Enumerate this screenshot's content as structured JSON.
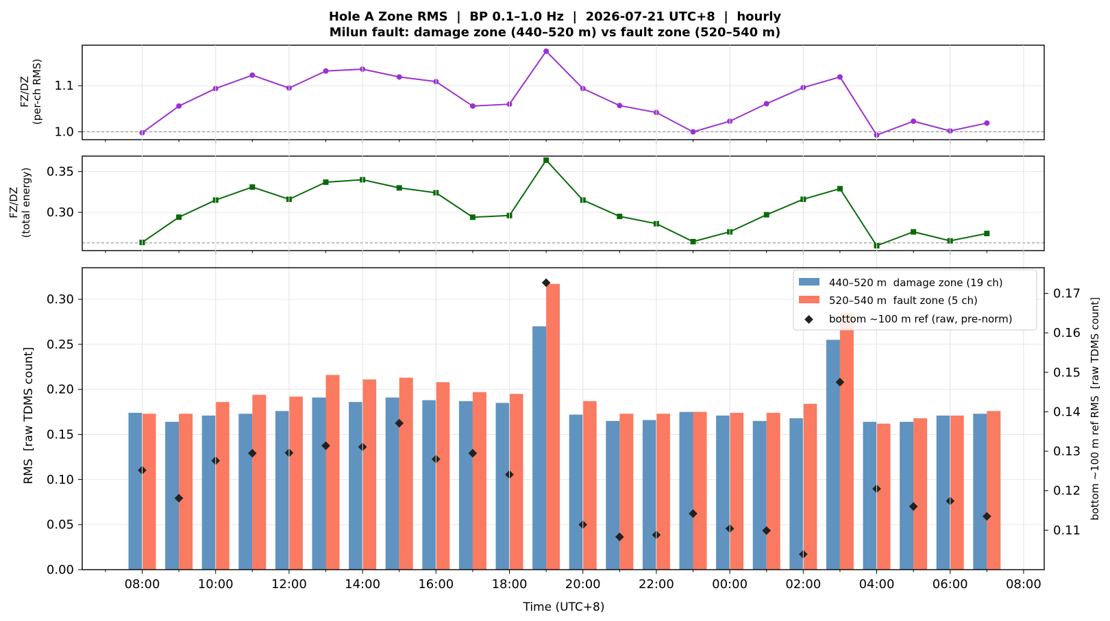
{
  "title_line1": "Hole A Zone RMS  |  BP 0.1–1.0 Hz  |  2026-07-21 UTC+8  |  hourly",
  "title_line2": "Milun fault: damage zone (440–520 m) vs fault zone (520–540 m)",
  "colors": {
    "ratio_rms": "#9b30d0",
    "ratio_energy": "#0a6a0a",
    "damage_zone": "#6093c0",
    "fault_zone": "#fa7a62",
    "reference": "#222222",
    "dashed_ref": "#808080"
  },
  "chart_data": [
    {
      "type": "line",
      "ylabel_line1": "FZ/DZ",
      "ylabel_line2": "(per-ch RMS)",
      "ylim": [
        0.983,
        1.188
      ],
      "yticks": [
        1.0,
        1.1
      ],
      "ytick_labels": [
        "1.0",
        "1.1"
      ],
      "reference_line": 1.0,
      "grid": true,
      "series": [
        {
          "marker": "circle",
          "values": [
            0.998,
            1.056,
            1.094,
            1.123,
            1.095,
            1.132,
            1.136,
            1.119,
            1.109,
            1.056,
            1.06,
            1.175,
            1.094,
            1.057,
            1.042,
            1.0,
            1.023,
            1.061,
            1.096,
            1.119,
            0.993,
            1.023,
            1.002,
            1.019
          ]
        }
      ]
    },
    {
      "type": "line",
      "ylabel_line1": "FZ/DZ",
      "ylabel_line2": "(total energy)",
      "ylim": [
        0.253,
        0.369
      ],
      "yticks": [
        0.3,
        0.35
      ],
      "ytick_labels": [
        "0.30",
        "0.35"
      ],
      "reference_line": 0.2625,
      "grid": true,
      "series": [
        {
          "marker": "square",
          "values": [
            0.263,
            0.294,
            0.315,
            0.331,
            0.316,
            0.337,
            0.34,
            0.33,
            0.324,
            0.294,
            0.296,
            0.364,
            0.315,
            0.295,
            0.286,
            0.264,
            0.276,
            0.297,
            0.316,
            0.329,
            0.259,
            0.276,
            0.265,
            0.274
          ]
        }
      ]
    },
    {
      "type": "bar",
      "ylabel": "RMS  [raw TDMS count]",
      "ylabel_right": "bottom ~100 m ref RMS  [raw TDMS count]",
      "xlabel": "Time (UTC+8)",
      "ylim": [
        0,
        0.335
      ],
      "yticks": [
        0.0,
        0.05,
        0.1,
        0.15,
        0.2,
        0.25,
        0.3
      ],
      "ytick_labels": [
        "0.00",
        "0.05",
        "0.10",
        "0.15",
        "0.20",
        "0.25",
        "0.30"
      ],
      "ylim_right": [
        0.1,
        0.1765
      ],
      "yticks_right": [
        0.11,
        0.12,
        0.13,
        0.14,
        0.15,
        0.16,
        0.17
      ],
      "ytick_labels_right": [
        "0.11",
        "0.12",
        "0.13",
        "0.14",
        "0.15",
        "0.16",
        "0.17"
      ],
      "xtick_labels": [
        "08:00",
        "10:00",
        "12:00",
        "14:00",
        "16:00",
        "18:00",
        "20:00",
        "22:00",
        "00:00",
        "02:00",
        "04:00",
        "06:00",
        "08:00"
      ],
      "legend": "upper right",
      "grid": true,
      "series": [
        {
          "name": "440–520 m  damage zone (19 ch)",
          "values": [
            0.174,
            0.164,
            0.171,
            0.173,
            0.176,
            0.191,
            0.186,
            0.191,
            0.188,
            0.187,
            0.185,
            0.27,
            0.172,
            0.165,
            0.166,
            0.175,
            0.171,
            0.165,
            0.168,
            0.255,
            0.164,
            0.164,
            0.171,
            0.173
          ]
        },
        {
          "name": "520–540 m  fault zone (5 ch)",
          "values": [
            0.173,
            0.173,
            0.186,
            0.194,
            0.192,
            0.216,
            0.211,
            0.213,
            0.208,
            0.197,
            0.195,
            0.317,
            0.187,
            0.173,
            0.173,
            0.175,
            0.174,
            0.174,
            0.184,
            0.285,
            0.162,
            0.168,
            0.171,
            0.176
          ]
        },
        {
          "name": "bottom ~100 m ref (raw, pre-norm)",
          "axis": "right",
          "marker": "diamond",
          "values": [
            0.1252,
            0.1181,
            0.1276,
            0.1295,
            0.1296,
            0.1314,
            0.1311,
            0.1371,
            0.128,
            0.1295,
            0.1241,
            0.1727,
            0.1114,
            0.1083,
            0.1088,
            0.1142,
            0.1104,
            0.1099,
            0.1039,
            0.1475,
            0.1205,
            0.116,
            0.1174,
            0.1135
          ]
        }
      ]
    }
  ]
}
